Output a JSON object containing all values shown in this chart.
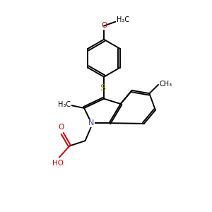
{
  "background_color": "#ffffff",
  "bond_color": "#000000",
  "sulfur_color": "#808000",
  "nitrogen_color": "#4444cc",
  "oxygen_color": "#cc0000",
  "figsize": [
    3.0,
    3.0
  ],
  "dpi": 100,
  "xlim": [
    0,
    10
  ],
  "ylim": [
    0,
    10
  ],
  "lw": 1.4,
  "fs": 7.5
}
